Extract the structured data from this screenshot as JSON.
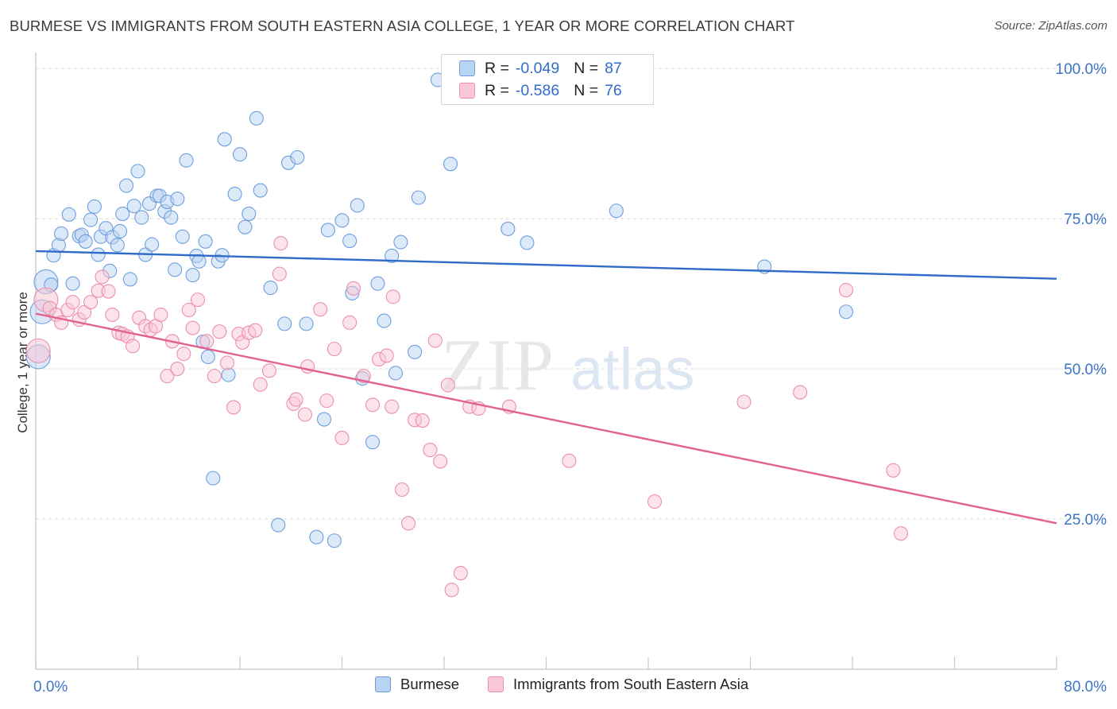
{
  "chart_data": {
    "type": "scatter",
    "title": "BURMESE VS IMMIGRANTS FROM SOUTH EASTERN ASIA COLLEGE, 1 YEAR OR MORE CORRELATION CHART",
    "source": "Source: ZipAtlas.com",
    "xlabel": "",
    "ylabel": "College, 1 year or more",
    "xlim": [
      0,
      80
    ],
    "ylim": [
      0,
      102
    ],
    "x_tick_labels": [
      "0.0%",
      "80.0%"
    ],
    "y_ticks": [
      25,
      50,
      75,
      100
    ],
    "y_tick_labels": [
      "25.0%",
      "50.0%",
      "75.0%",
      "100.0%"
    ],
    "watermark": "ZIPatlas",
    "legend": {
      "stats": [
        {
          "r_label": "R =",
          "r_value": "-0.049",
          "n_label": "N =",
          "n_value": "87"
        },
        {
          "r_label": "R =",
          "r_value": "-0.586",
          "n_label": "N =",
          "n_value": "76"
        }
      ]
    },
    "series": [
      {
        "name": "Burmese",
        "color": "#6e9fdc",
        "fill": "#b9d3f3",
        "line_color": "#2f6cc9",
        "trend": {
          "x0": 0,
          "y0": 69.6,
          "x1": 80,
          "y1": 65.0
        },
        "points": [
          [
            0.2,
            52
          ],
          [
            0.5,
            59.5
          ],
          [
            0.8,
            64.5
          ],
          [
            1.2,
            64.0
          ],
          [
            1.4,
            68.9
          ],
          [
            1.8,
            70.6
          ],
          [
            2.0,
            72.5
          ],
          [
            2.6,
            75.7
          ],
          [
            2.9,
            64.2
          ],
          [
            3.4,
            72.1
          ],
          [
            3.6,
            72.3
          ],
          [
            3.9,
            71.2
          ],
          [
            4.3,
            74.8
          ],
          [
            4.6,
            77.0
          ],
          [
            4.9,
            69.0
          ],
          [
            5.1,
            72.0
          ],
          [
            5.5,
            73.4
          ],
          [
            5.8,
            66.3
          ],
          [
            6.0,
            71.9
          ],
          [
            6.4,
            70.6
          ],
          [
            6.6,
            72.9
          ],
          [
            6.8,
            75.8
          ],
          [
            7.1,
            80.5
          ],
          [
            7.4,
            64.9
          ],
          [
            7.7,
            77.1
          ],
          [
            8.0,
            82.9
          ],
          [
            8.3,
            75.2
          ],
          [
            8.6,
            69.0
          ],
          [
            8.9,
            77.5
          ],
          [
            9.1,
            70.7
          ],
          [
            9.5,
            78.8
          ],
          [
            9.7,
            78.8
          ],
          [
            10.1,
            76.2
          ],
          [
            10.3,
            77.8
          ],
          [
            10.6,
            75.2
          ],
          [
            10.9,
            66.5
          ],
          [
            11.1,
            78.3
          ],
          [
            11.5,
            72.0
          ],
          [
            11.8,
            84.7
          ],
          [
            12.3,
            65.6
          ],
          [
            12.6,
            68.8
          ],
          [
            12.8,
            67.9
          ],
          [
            13.1,
            54.5
          ],
          [
            13.3,
            71.2
          ],
          [
            13.5,
            52.0
          ],
          [
            13.9,
            31.8
          ],
          [
            14.3,
            67.9
          ],
          [
            14.6,
            68.9
          ],
          [
            14.8,
            88.2
          ],
          [
            15.1,
            49.0
          ],
          [
            15.6,
            79.1
          ],
          [
            16.0,
            85.7
          ],
          [
            16.4,
            73.6
          ],
          [
            16.7,
            75.8
          ],
          [
            17.3,
            91.7
          ],
          [
            17.6,
            79.7
          ],
          [
            18.4,
            63.5
          ],
          [
            19.0,
            24.0
          ],
          [
            19.5,
            57.5
          ],
          [
            19.8,
            84.3
          ],
          [
            20.5,
            85.2
          ],
          [
            21.2,
            57.5
          ],
          [
            22.0,
            22.0
          ],
          [
            22.6,
            41.6
          ],
          [
            22.9,
            73.1
          ],
          [
            23.4,
            21.4
          ],
          [
            24.0,
            74.7
          ],
          [
            24.6,
            71.3
          ],
          [
            24.8,
            62.6
          ],
          [
            25.2,
            77.2
          ],
          [
            25.6,
            48.4
          ],
          [
            26.4,
            37.8
          ],
          [
            26.8,
            64.2
          ],
          [
            27.3,
            58.0
          ],
          [
            27.9,
            68.8
          ],
          [
            28.2,
            49.3
          ],
          [
            28.6,
            71.1
          ],
          [
            29.7,
            52.8
          ],
          [
            30.0,
            78.5
          ],
          [
            31.5,
            98.1
          ],
          [
            32.5,
            84.1
          ],
          [
            37.0,
            73.3
          ],
          [
            38.5,
            71.0
          ],
          [
            45.5,
            76.3
          ],
          [
            57.1,
            67.0
          ],
          [
            63.5,
            59.5
          ]
        ],
        "large_points": [
          [
            0.2,
            52
          ],
          [
            0.5,
            59.5
          ],
          [
            0.8,
            64.5
          ]
        ]
      },
      {
        "name": "Immigrants from South Eastern Asia",
        "color": "#ea8fae",
        "fill": "#fac7d6",
        "line_color": "#e2628f",
        "trend": {
          "x0": 0,
          "y0": 59.2,
          "x1": 80,
          "y1": 24.3
        },
        "points": [
          [
            0.2,
            53.0
          ],
          [
            0.8,
            61.5
          ],
          [
            1.1,
            60.1
          ],
          [
            1.6,
            59.0
          ],
          [
            2.0,
            57.7
          ],
          [
            2.5,
            59.8
          ],
          [
            2.9,
            61.1
          ],
          [
            3.4,
            58.2
          ],
          [
            3.8,
            59.4
          ],
          [
            4.3,
            61.1
          ],
          [
            4.9,
            63.0
          ],
          [
            5.2,
            65.3
          ],
          [
            5.7,
            62.9
          ],
          [
            6.0,
            59.0
          ],
          [
            6.5,
            56.0
          ],
          [
            6.8,
            55.8
          ],
          [
            7.2,
            55.4
          ],
          [
            7.6,
            53.8
          ],
          [
            8.1,
            58.5
          ],
          [
            8.6,
            57.1
          ],
          [
            9.0,
            56.5
          ],
          [
            9.4,
            57.1
          ],
          [
            9.8,
            59.0
          ],
          [
            10.3,
            48.8
          ],
          [
            10.7,
            54.6
          ],
          [
            11.1,
            50.0
          ],
          [
            11.6,
            52.5
          ],
          [
            12.0,
            59.8
          ],
          [
            12.3,
            56.8
          ],
          [
            12.7,
            61.5
          ],
          [
            13.4,
            54.6
          ],
          [
            14.0,
            48.8
          ],
          [
            14.4,
            56.2
          ],
          [
            15.0,
            51.0
          ],
          [
            15.5,
            43.6
          ],
          [
            15.9,
            55.8
          ],
          [
            16.2,
            54.4
          ],
          [
            16.7,
            56.0
          ],
          [
            17.2,
            56.4
          ],
          [
            17.6,
            47.4
          ],
          [
            18.3,
            49.7
          ],
          [
            19.1,
            65.8
          ],
          [
            19.2,
            70.9
          ],
          [
            20.2,
            44.2
          ],
          [
            20.4,
            44.9
          ],
          [
            21.1,
            42.4
          ],
          [
            21.3,
            50.4
          ],
          [
            22.3,
            59.9
          ],
          [
            22.8,
            44.7
          ],
          [
            23.4,
            53.3
          ],
          [
            24.0,
            38.5
          ],
          [
            24.6,
            57.7
          ],
          [
            24.9,
            63.4
          ],
          [
            25.7,
            48.8
          ],
          [
            26.4,
            44.0
          ],
          [
            26.9,
            51.6
          ],
          [
            27.5,
            52.2
          ],
          [
            27.9,
            43.7
          ],
          [
            28.7,
            29.9
          ],
          [
            29.2,
            24.3
          ],
          [
            29.7,
            41.5
          ],
          [
            30.3,
            41.4
          ],
          [
            30.9,
            36.5
          ],
          [
            31.3,
            54.7
          ],
          [
            31.7,
            34.6
          ],
          [
            32.3,
            47.3
          ],
          [
            32.6,
            13.2
          ],
          [
            33.3,
            16.0
          ],
          [
            34.0,
            43.7
          ],
          [
            34.7,
            43.4
          ],
          [
            37.1,
            43.7
          ],
          [
            41.8,
            34.7
          ],
          [
            48.5,
            27.9
          ],
          [
            55.5,
            44.5
          ],
          [
            59.9,
            46.1
          ],
          [
            63.5,
            63.1
          ],
          [
            67.2,
            33.1
          ],
          [
            67.8,
            22.6
          ],
          [
            28.0,
            62.0
          ]
        ],
        "large_points": [
          [
            0.2,
            53.0
          ],
          [
            0.8,
            61.5
          ]
        ]
      }
    ]
  }
}
